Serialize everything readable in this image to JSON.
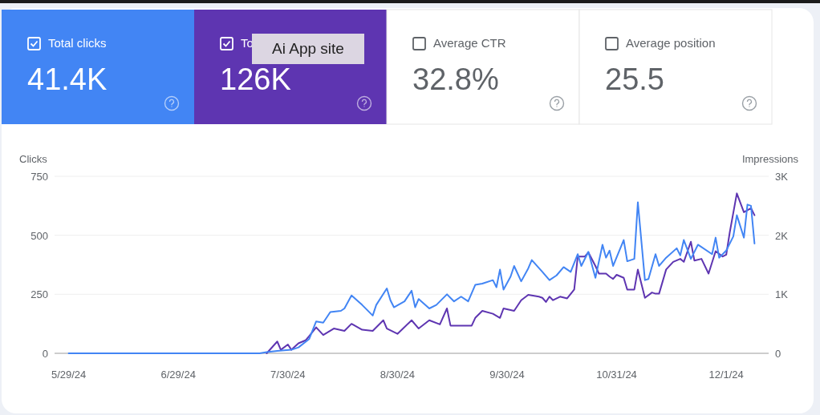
{
  "chart_data": {
    "type": "line",
    "ylabel": "Clicks",
    "y2label": "Impressions",
    "annotations": [
      "Total clicks",
      "41.4K",
      "To",
      "126K",
      "Average CTR",
      "32.8%",
      "Average position",
      "25.5",
      "Ai App site"
    ],
    "xlim": [
      "2024-05-25",
      "2024-12-13"
    ],
    "xticks": [
      {
        "value": "2024-05-29",
        "label": "5/29/24"
      },
      {
        "value": "2024-06-29",
        "label": "6/29/24"
      },
      {
        "value": "2024-07-30",
        "label": "7/30/24"
      },
      {
        "value": "2024-08-30",
        "label": "8/30/24"
      },
      {
        "value": "2024-09-30",
        "label": "9/30/24"
      },
      {
        "value": "2024-10-31",
        "label": "10/31/24"
      },
      {
        "value": "2024-12-01",
        "label": "12/1/24"
      }
    ],
    "ylim": [
      0,
      750
    ],
    "yticks": [
      0,
      250,
      500,
      750
    ],
    "y2lim": [
      0,
      3000
    ],
    "y2ticks": [
      0,
      {
        "value": 1000,
        "label": "1K"
      },
      {
        "value": 2000,
        "label": "2K"
      },
      {
        "value": 3000,
        "label": "3K"
      }
    ],
    "grid": "y",
    "marker": "none",
    "line_style": "solid",
    "series": [
      {
        "color": "#4285f4",
        "x": [
          "2024-05-29",
          "2024-06-18",
          "2024-07-08",
          "2024-07-22",
          "2024-07-24",
          "2024-07-27",
          "2024-07-31",
          "2024-08-02",
          "2024-08-05",
          "2024-08-07",
          "2024-08-09",
          "2024-08-11",
          "2024-08-14",
          "2024-08-15",
          "2024-08-17",
          "2024-08-20",
          "2024-08-23",
          "2024-08-24",
          "2024-08-27",
          "2024-08-28",
          "2024-08-29",
          "2024-09-01",
          "2024-09-03",
          "2024-09-04",
          "2024-09-05",
          "2024-09-08",
          "2024-09-10",
          "2024-09-13",
          "2024-09-15",
          "2024-09-17",
          "2024-09-19",
          "2024-09-21",
          "2024-09-23",
          "2024-09-26",
          "2024-09-27",
          "2024-09-28",
          "2024-09-29",
          "2024-10-01",
          "2024-10-02",
          "2024-10-04",
          "2024-10-06",
          "2024-10-07",
          "2024-10-10",
          "2024-10-12",
          "2024-10-14",
          "2024-10-16",
          "2024-10-18",
          "2024-10-20",
          "2024-10-21",
          "2024-10-23",
          "2024-10-25",
          "2024-10-27",
          "2024-10-28",
          "2024-10-29",
          "2024-10-30",
          "2024-11-02",
          "2024-11-03",
          "2024-11-05",
          "2024-11-06",
          "2024-11-08",
          "2024-11-09",
          "2024-11-11",
          "2024-11-12",
          "2024-11-14",
          "2024-11-17",
          "2024-11-18",
          "2024-11-19",
          "2024-11-21",
          "2024-11-23",
          "2024-11-27",
          "2024-11-28",
          "2024-11-29",
          "2024-12-01",
          "2024-12-03",
          "2024-12-04",
          "2024-12-06",
          "2024-12-07",
          "2024-12-08",
          "2024-12-09"
        ],
        "values": [
          0,
          0,
          0,
          0,
          5,
          10,
          15,
          25,
          60,
          135,
          130,
          175,
          180,
          190,
          245,
          205,
          160,
          205,
          275,
          225,
          195,
          220,
          265,
          195,
          230,
          190,
          205,
          250,
          220,
          240,
          220,
          290,
          295,
          310,
          280,
          355,
          270,
          325,
          370,
          305,
          360,
          395,
          345,
          310,
          330,
          365,
          345,
          420,
          370,
          430,
          320,
          460,
          405,
          435,
          370,
          480,
          390,
          400,
          640,
          310,
          315,
          420,
          370,
          405,
          445,
          415,
          480,
          400,
          460,
          420,
          490,
          405,
          435,
          495,
          585,
          490,
          630,
          625,
          465
        ]
      },
      {
        "color": "#5e35b1",
        "axis": "y2",
        "x": [
          "2024-07-24",
          "2024-07-27",
          "2024-07-28",
          "2024-07-30",
          "2024-07-31",
          "2024-08-02",
          "2024-08-04",
          "2024-08-05",
          "2024-08-07",
          "2024-08-09",
          "2024-08-12",
          "2024-08-15",
          "2024-08-17",
          "2024-08-20",
          "2024-08-23",
          "2024-08-26",
          "2024-08-27",
          "2024-08-30",
          "2024-09-03",
          "2024-09-05",
          "2024-09-08",
          "2024-09-11",
          "2024-09-13",
          "2024-09-14",
          "2024-09-17",
          "2024-09-20",
          "2024-09-21",
          "2024-09-23",
          "2024-09-26",
          "2024-09-28",
          "2024-09-29",
          "2024-10-02",
          "2024-10-04",
          "2024-10-06",
          "2024-10-09",
          "2024-10-10",
          "2024-10-11",
          "2024-10-12",
          "2024-10-13",
          "2024-10-15",
          "2024-10-17",
          "2024-10-19",
          "2024-10-20",
          "2024-10-22",
          "2024-10-23",
          "2024-10-25",
          "2024-10-26",
          "2024-10-28",
          "2024-10-29",
          "2024-10-30",
          "2024-10-31",
          "2024-11-02",
          "2024-11-03",
          "2024-11-05",
          "2024-11-06",
          "2024-11-08",
          "2024-11-10",
          "2024-11-11",
          "2024-11-12",
          "2024-11-14",
          "2024-11-16",
          "2024-11-18",
          "2024-11-19",
          "2024-11-21",
          "2024-11-22",
          "2024-11-24",
          "2024-11-26",
          "2024-11-28",
          "2024-11-30",
          "2024-12-01",
          "2024-12-02",
          "2024-12-04",
          "2024-12-06",
          "2024-12-08",
          "2024-12-09"
        ],
        "values": [
          0,
          200,
          60,
          150,
          60,
          170,
          220,
          290,
          440,
          310,
          420,
          380,
          500,
          400,
          380,
          560,
          420,
          330,
          560,
          420,
          560,
          490,
          760,
          470,
          470,
          470,
          600,
          720,
          670,
          600,
          760,
          720,
          900,
          990,
          960,
          940,
          870,
          960,
          900,
          960,
          930,
          1080,
          1640,
          1640,
          1710,
          1480,
          1350,
          1350,
          1300,
          1260,
          1330,
          1280,
          1080,
          1080,
          1420,
          940,
          1030,
          1010,
          1010,
          1420,
          1550,
          1600,
          1550,
          1890,
          1570,
          1600,
          1350,
          1730,
          1640,
          1670,
          2050,
          2710,
          2390,
          2460,
          2340
        ]
      }
    ]
  }
}
